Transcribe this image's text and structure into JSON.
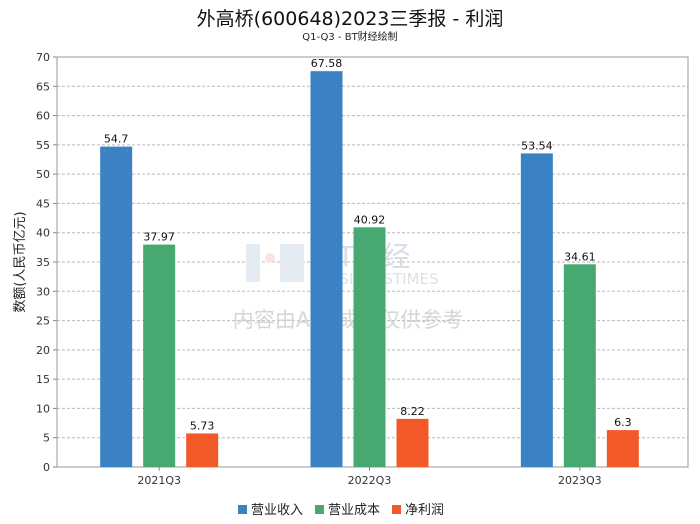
{
  "chart_data": {
    "type": "bar",
    "title": "外高桥(600648)2023三季报 - 利润",
    "subtitle": "Q1-Q3 - BT财经绘制",
    "xlabel": "",
    "ylabel": "数额(人民币亿元)",
    "ylim": [
      0,
      70
    ],
    "yticks": [
      0,
      5,
      10,
      15,
      20,
      25,
      30,
      35,
      40,
      45,
      50,
      55,
      60,
      65,
      70
    ],
    "grid": true,
    "legend_position": "bottom",
    "categories": [
      "2021Q3",
      "2022Q3",
      "2023Q3"
    ],
    "series": [
      {
        "name": "营业收入",
        "color": "#3a82c3",
        "values": [
          54.7,
          67.58,
          53.54
        ]
      },
      {
        "name": "营业成本",
        "color": "#47a872",
        "values": [
          37.97,
          40.92,
          34.61
        ]
      },
      {
        "name": "净利润",
        "color": "#f15a28",
        "values": [
          5.73,
          8.22,
          6.3
        ]
      }
    ],
    "watermark": {
      "logo": "BT财经",
      "logo_sub": "BUSINESSTIMES",
      "notice": "内容由AI生成，仅供参考"
    }
  }
}
